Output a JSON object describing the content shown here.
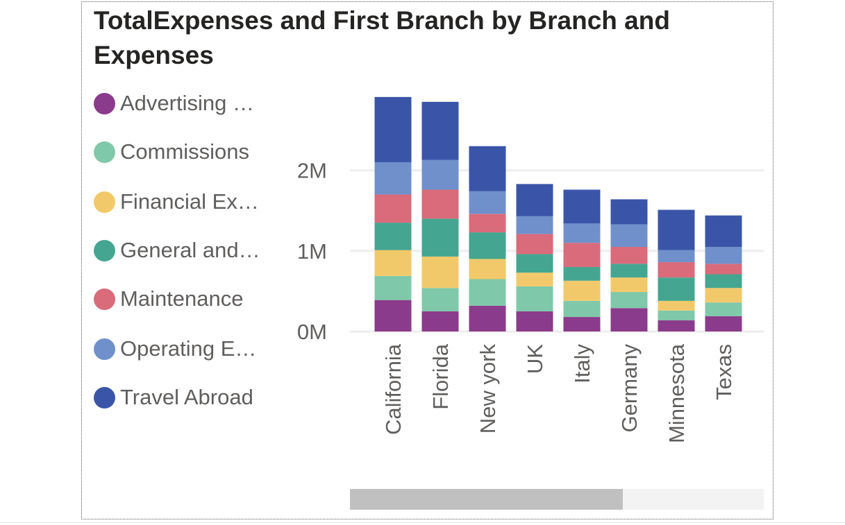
{
  "colors": {
    "Advertising": "#8b3b8b",
    "Commissions": "#7fc8a9",
    "Financial": "#f2c96a",
    "General": "#44a690",
    "Maintenance": "#d96b7b",
    "Operating": "#7090cc",
    "Travel": "#3a55a8",
    "gridline": "#eeeeee",
    "scroll_thumb": "#c0c0c0",
    "scroll_track": "#f3f3f3"
  },
  "legend": [
    {
      "label": "Advertising …",
      "color": "#8b3b8b"
    },
    {
      "label": "Commissions",
      "color": "#7fc8a9"
    },
    {
      "label": "Financial Ex…",
      "color": "#f2c96a"
    },
    {
      "label": "General and…",
      "color": "#44a690"
    },
    {
      "label": "Maintenance",
      "color": "#d96b7b"
    },
    {
      "label": "Operating E…",
      "color": "#7090cc"
    },
    {
      "label": "Travel Abroad",
      "color": "#3a55a8"
    }
  ],
  "chart_data": {
    "type": "bar",
    "stacked": true,
    "title": "TotalExpenses and First Branch by Branch and Expenses",
    "categories": [
      "California",
      "Florida",
      "New york",
      "UK",
      "Italy",
      "Germany",
      "Minnesota",
      "Texas"
    ],
    "series": [
      {
        "name": "Advertising …",
        "color": "#8b3b8b",
        "values": [
          390000,
          250000,
          320000,
          250000,
          180000,
          290000,
          140000,
          190000
        ]
      },
      {
        "name": "Commissions",
        "color": "#7fc8a9",
        "values": [
          300000,
          290000,
          330000,
          310000,
          200000,
          200000,
          120000,
          170000
        ]
      },
      {
        "name": "Financial Ex…",
        "color": "#f2c96a",
        "values": [
          320000,
          390000,
          250000,
          170000,
          250000,
          180000,
          120000,
          180000
        ]
      },
      {
        "name": "General and…",
        "color": "#44a690",
        "values": [
          340000,
          470000,
          330000,
          230000,
          170000,
          170000,
          290000,
          170000
        ]
      },
      {
        "name": "Maintenance",
        "color": "#d96b7b",
        "values": [
          350000,
          360000,
          230000,
          250000,
          300000,
          210000,
          190000,
          130000
        ]
      },
      {
        "name": "Operating E…",
        "color": "#7090cc",
        "values": [
          400000,
          370000,
          280000,
          220000,
          240000,
          280000,
          150000,
          210000
        ]
      },
      {
        "name": "Travel Abroad",
        "color": "#3a55a8",
        "values": [
          810000,
          720000,
          560000,
          400000,
          420000,
          310000,
          500000,
          390000
        ]
      }
    ],
    "y_ticks": [
      {
        "value": 0,
        "label": "0M"
      },
      {
        "value": 1000000,
        "label": "1M"
      },
      {
        "value": 2000000,
        "label": "2M"
      }
    ],
    "ylim": [
      0,
      2900000
    ],
    "xlabel": "",
    "ylabel": "",
    "legend_position": "left",
    "grid": true,
    "x_label_rotation": -90
  },
  "scrollbar": {
    "position": "bottom",
    "visible_fraction": 0.66
  }
}
